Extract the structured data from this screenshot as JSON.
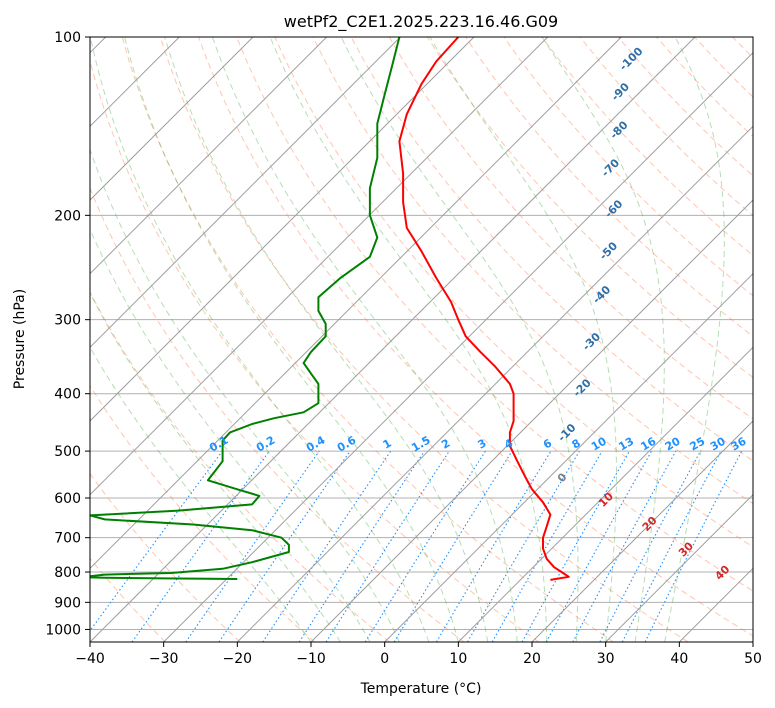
{
  "chart_data": {
    "type": "line",
    "title": "wetPf2_C2E1.2025.223.16.46.G09",
    "xlabel": "Temperature (°C)",
    "ylabel": "Pressure (hPa)",
    "xlim": [
      -40,
      50
    ],
    "ylim": [
      1050,
      100
    ],
    "y_scale": "log",
    "grid": true,
    "x_ticks": [
      -40,
      -30,
      -20,
      -10,
      0,
      10,
      20,
      30,
      40,
      50
    ],
    "y_ticks": [
      100,
      200,
      300,
      400,
      500,
      600,
      700,
      800,
      900,
      1000
    ],
    "colors": {
      "temperature": "#ff0000",
      "dewpoint": "#008000",
      "isotherm": "#9e9e9e",
      "dry_adiabat": "#ff7f50",
      "moist_adiabat": "#2ca02c",
      "mixing_ratio": "#1e90ff",
      "dry_label": "#2f6fa8",
      "moist_label": "#d62728"
    },
    "series": [
      {
        "key": "temperature",
        "points": [
          [
            22.5,
            825
          ],
          [
            25,
            815
          ],
          [
            24,
            800
          ],
          [
            23,
            785
          ],
          [
            22,
            760
          ],
          [
            21.5,
            730
          ],
          [
            21.5,
            700
          ],
          [
            22,
            670
          ],
          [
            22.5,
            640
          ],
          [
            21.5,
            610
          ],
          [
            20,
            580
          ],
          [
            19,
            550
          ],
          [
            18,
            520
          ],
          [
            17,
            490
          ],
          [
            17,
            465
          ],
          [
            17.5,
            445
          ],
          [
            17.5,
            420
          ],
          [
            17.5,
            400
          ],
          [
            17,
            385
          ],
          [
            15,
            360
          ],
          [
            13,
            340
          ],
          [
            11,
            320
          ],
          [
            10,
            300
          ],
          [
            9,
            280
          ],
          [
            7,
            255
          ],
          [
            5,
            230
          ],
          [
            3,
            210
          ],
          [
            2.5,
            190
          ],
          [
            2.5,
            170
          ],
          [
            2,
            150
          ],
          [
            3,
            135
          ],
          [
            5,
            120
          ],
          [
            7,
            110
          ],
          [
            10,
            100
          ]
        ]
      },
      {
        "key": "dewpoint",
        "points": [
          [
            -20,
            822
          ],
          [
            -30,
            820
          ],
          [
            -38,
            818
          ],
          [
            -41,
            816
          ],
          [
            -38,
            808
          ],
          [
            -29,
            803
          ],
          [
            -22,
            790
          ],
          [
            -18,
            770
          ],
          [
            -13,
            740
          ],
          [
            -13,
            720
          ],
          [
            -14,
            700
          ],
          [
            -18,
            680
          ],
          [
            -26,
            665
          ],
          [
            -38,
            652
          ],
          [
            -40,
            642
          ],
          [
            -28,
            630
          ],
          [
            -18,
            615
          ],
          [
            -17,
            595
          ],
          [
            -20,
            580
          ],
          [
            -24,
            560
          ],
          [
            -23,
            540
          ],
          [
            -22,
            520
          ],
          [
            -22,
            500
          ],
          [
            -22,
            480
          ],
          [
            -21,
            465
          ],
          [
            -18,
            450
          ],
          [
            -15,
            440
          ],
          [
            -11,
            430
          ],
          [
            -9,
            415
          ],
          [
            -9,
            400
          ],
          [
            -9,
            385
          ],
          [
            -10,
            370
          ],
          [
            -11,
            355
          ],
          [
            -10,
            340
          ],
          [
            -8,
            320
          ],
          [
            -8,
            305
          ],
          [
            -9,
            290
          ],
          [
            -9,
            275
          ],
          [
            -6,
            255
          ],
          [
            -2,
            235
          ],
          [
            -1,
            218
          ],
          [
            -2,
            200
          ],
          [
            -2,
            180
          ],
          [
            -1,
            160
          ],
          [
            -1,
            140
          ],
          [
            0,
            125
          ],
          [
            1,
            112
          ],
          [
            2,
            100
          ]
        ]
      }
    ],
    "dry_adiabat_labels": [
      "-100",
      "-90",
      "-80",
      "-70",
      "-60",
      "-50",
      "-40",
      "-30",
      "-20",
      "-10"
    ],
    "mixing_ratio_labels": [
      "0.1",
      "0.2",
      "0.4",
      "0.6",
      "1",
      "1.5",
      "2",
      "3",
      "4",
      "6",
      "8",
      "10",
      "13",
      "16",
      "20",
      "25",
      "30",
      "36"
    ],
    "moist_adiabat_labels": [
      "0",
      "10",
      "20",
      "30",
      "40"
    ]
  }
}
